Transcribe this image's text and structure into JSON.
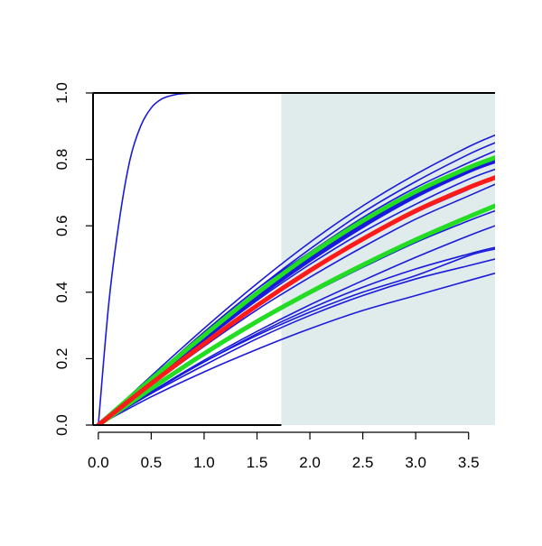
{
  "chart_data": {
    "type": "line",
    "title": "",
    "xlabel": "",
    "ylabel": "",
    "xlim": [
      -0.05,
      3.75
    ],
    "ylim": [
      0.0,
      1.0
    ],
    "x_ticks": [
      "0.0",
      "0.5",
      "1.0",
      "1.5",
      "2.0",
      "2.5",
      "3.0",
      "3.5"
    ],
    "y_ticks": [
      "0.0",
      "0.2",
      "0.4",
      "0.6",
      "0.8",
      "1.0"
    ],
    "grid": false,
    "legend": "none",
    "shaded_region": {
      "x_from": 1.73,
      "x_to": 3.75,
      "color": "#e0ebeb"
    },
    "colors": {
      "blue": "#1a1adc",
      "green": "#22dd22",
      "red": "#ff1a1a",
      "axis": "#000000"
    },
    "series": [
      {
        "color": "blue",
        "lw": 1.6,
        "x": [
          0,
          0.1,
          0.2,
          0.3,
          0.4,
          0.5,
          0.6,
          0.7,
          0.8,
          1.0,
          1.5,
          2.0,
          3.0,
          3.75
        ],
        "values": [
          0.0,
          0.37,
          0.62,
          0.8,
          0.9,
          0.955,
          0.982,
          0.993,
          0.998,
          1.0,
          1.0,
          1.0,
          1.0,
          1.0
        ]
      },
      {
        "color": "blue",
        "lw": 1.6,
        "x": [
          0,
          0.5,
          1.0,
          1.5,
          2.0,
          2.5,
          3.0,
          3.5,
          3.75
        ],
        "values": [
          0.0,
          0.137,
          0.268,
          0.393,
          0.507,
          0.608,
          0.7,
          0.77,
          0.797
        ]
      },
      {
        "color": "blue",
        "lw": 1.6,
        "x": [
          0,
          0.5,
          1.0,
          1.5,
          2.0,
          2.5,
          3.0,
          3.5,
          3.75
        ],
        "values": [
          0.0,
          0.148,
          0.291,
          0.426,
          0.55,
          0.66,
          0.755,
          0.838,
          0.873
        ]
      },
      {
        "color": "blue",
        "lw": 1.6,
        "x": [
          0,
          0.5,
          1.0,
          1.5,
          2.0,
          2.5,
          3.0,
          3.5,
          3.75
        ],
        "values": [
          0.0,
          0.14,
          0.28,
          0.41,
          0.53,
          0.64,
          0.733,
          0.815,
          0.85
        ]
      },
      {
        "color": "blue",
        "lw": 1.6,
        "x": [
          0,
          0.5,
          1.0,
          1.5,
          2.0,
          2.5,
          3.0,
          3.5,
          3.75
        ],
        "values": [
          0.0,
          0.14,
          0.28,
          0.41,
          0.52,
          0.625,
          0.715,
          0.79,
          0.825
        ]
      },
      {
        "color": "blue",
        "lw": 1.6,
        "x": [
          0,
          0.5,
          1.0,
          1.5,
          2.0,
          2.5,
          3.0,
          3.5,
          3.75
        ],
        "values": [
          0.0,
          0.13,
          0.255,
          0.375,
          0.484,
          0.581,
          0.665,
          0.74,
          0.77
        ]
      },
      {
        "color": "blue",
        "lw": 1.6,
        "x": [
          0,
          0.5,
          1.0,
          1.5,
          2.0,
          2.5,
          3.0,
          3.5,
          3.75
        ],
        "values": [
          0.0,
          0.125,
          0.245,
          0.36,
          0.462,
          0.556,
          0.64,
          0.71,
          0.75
        ]
      },
      {
        "color": "blue",
        "lw": 1.6,
        "x": [
          0,
          0.5,
          1.0,
          1.5,
          2.0,
          2.5,
          3.0,
          3.5,
          3.75
        ],
        "values": [
          0.0,
          0.12,
          0.237,
          0.347,
          0.445,
          0.536,
          0.62,
          0.69,
          0.725
        ]
      },
      {
        "color": "blue",
        "lw": 1.6,
        "x": [
          0,
          0.5,
          1.0,
          1.5,
          2.0,
          2.5,
          3.0,
          3.5,
          3.75
        ],
        "values": [
          0.0,
          0.11,
          0.213,
          0.308,
          0.395,
          0.475,
          0.55,
          0.615,
          0.645
        ]
      },
      {
        "color": "blue",
        "lw": 1.6,
        "x": [
          0,
          0.5,
          1.0,
          1.5,
          2.0,
          2.5,
          3.0,
          3.5,
          3.75
        ],
        "values": [
          0.0,
          0.1,
          0.195,
          0.282,
          0.362,
          0.435,
          0.505,
          0.57,
          0.6
        ]
      },
      {
        "color": "blue",
        "lw": 1.6,
        "x": [
          0,
          0.5,
          1.0,
          1.5,
          2.0,
          2.5,
          3.0,
          3.5,
          3.75
        ],
        "values": [
          0.0,
          0.1,
          0.19,
          0.275,
          0.35,
          0.415,
          0.47,
          0.515,
          0.535
        ]
      },
      {
        "color": "blue",
        "lw": 1.6,
        "x": [
          0,
          0.5,
          1.0,
          1.5,
          2.0,
          2.5,
          3.0,
          3.5,
          3.75
        ],
        "values": [
          0.0,
          0.095,
          0.18,
          0.26,
          0.33,
          0.39,
          0.44,
          0.48,
          0.5
        ]
      },
      {
        "color": "blue",
        "lw": 1.6,
        "x": [
          0,
          0.5,
          1.0,
          1.5,
          2.0,
          2.5,
          3.0,
          3.5,
          3.75
        ],
        "values": [
          0.0,
          0.085,
          0.16,
          0.228,
          0.29,
          0.345,
          0.39,
          0.435,
          0.457
        ]
      },
      {
        "color": "blue",
        "lw": 1.6,
        "x": [
          0,
          0.5,
          1.0,
          1.5,
          2.0,
          2.5,
          3.0,
          3.5,
          3.75
        ],
        "values": [
          0.0,
          0.098,
          0.19,
          0.27,
          0.34,
          0.4,
          0.45,
          0.51,
          0.53
        ]
      },
      {
        "color": "blue",
        "lw": 5,
        "x": [
          0,
          0.5,
          1.0,
          1.5,
          2.0,
          2.5,
          3.0,
          3.5,
          3.75
        ],
        "values": [
          0.0,
          0.133,
          0.262,
          0.385,
          0.498,
          0.6,
          0.69,
          0.765,
          0.795
        ]
      },
      {
        "color": "green",
        "lw": 5,
        "x": [
          0,
          0.5,
          1.0,
          1.5,
          2.0,
          2.5,
          3.0,
          3.5,
          3.75
        ],
        "values": [
          0.0,
          0.138,
          0.27,
          0.397,
          0.513,
          0.615,
          0.703,
          0.775,
          0.805
        ]
      },
      {
        "color": "green",
        "lw": 5,
        "x": [
          0,
          0.5,
          1.0,
          1.5,
          2.0,
          2.5,
          3.0,
          3.5,
          3.75
        ],
        "values": [
          0.0,
          0.11,
          0.215,
          0.312,
          0.4,
          0.482,
          0.558,
          0.627,
          0.66
        ]
      },
      {
        "color": "red",
        "lw": 5,
        "x": [
          0,
          0.5,
          1.0,
          1.5,
          2.0,
          2.5,
          3.0,
          3.5,
          3.75
        ],
        "values": [
          0.0,
          0.125,
          0.245,
          0.36,
          0.465,
          0.56,
          0.645,
          0.715,
          0.745
        ]
      }
    ]
  }
}
